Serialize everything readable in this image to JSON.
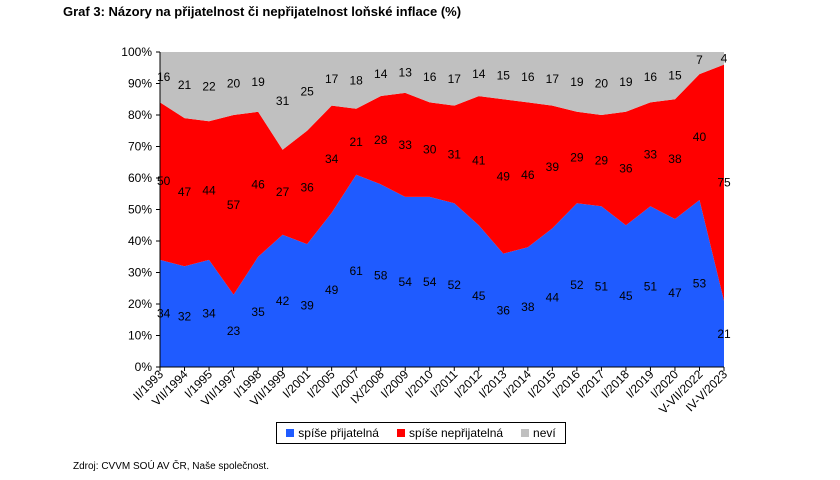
{
  "title": "Graf 3: Názory na přijatelnost či nepřijatelnost loňské inflace (%)",
  "source": "Zdroj: CVVM SOÚ AV ČR, Naše společnost.",
  "chart_data": {
    "type": "area",
    "stacked": true,
    "categories": [
      "II/1993",
      "VII/1994",
      "I/1995",
      "VII/1997",
      "I/1998",
      "VII/1999",
      "I/2001",
      "I/2005",
      "I/2007",
      "IX/2008",
      "I/2009",
      "I/2010",
      "I/2011",
      "I/2012",
      "I/2013",
      "I/2014",
      "I/2015",
      "I/2016",
      "I/2017",
      "I/2018",
      "I/2019",
      "I/2020",
      "V-VII/2022",
      "IV-V/2023"
    ],
    "series": [
      {
        "name": "spíše přijatelná",
        "color": "#1f5bff",
        "values": [
          34,
          32,
          34,
          23,
          35,
          42,
          39,
          49,
          61,
          58,
          54,
          54,
          52,
          45,
          36,
          38,
          44,
          52,
          51,
          45,
          51,
          47,
          53,
          21
        ]
      },
      {
        "name": "spíše nepřijatelná",
        "color": "#ff0000",
        "values": [
          50,
          47,
          44,
          57,
          46,
          27,
          36,
          34,
          21,
          28,
          33,
          30,
          31,
          41,
          49,
          46,
          39,
          29,
          29,
          36,
          33,
          38,
          40,
          75
        ]
      },
      {
        "name": "neví",
        "color": "#c0c0c0",
        "values": [
          16,
          21,
          22,
          20,
          19,
          31,
          25,
          17,
          18,
          14,
          13,
          16,
          17,
          14,
          15,
          16,
          17,
          19,
          20,
          19,
          16,
          15,
          7,
          4
        ]
      }
    ],
    "yticks": [
      "0%",
      "10%",
      "20%",
      "30%",
      "40%",
      "50%",
      "60%",
      "70%",
      "80%",
      "90%",
      "100%"
    ],
    "ylim": [
      0,
      100
    ],
    "legend_position": "bottom",
    "data_labels": true
  }
}
